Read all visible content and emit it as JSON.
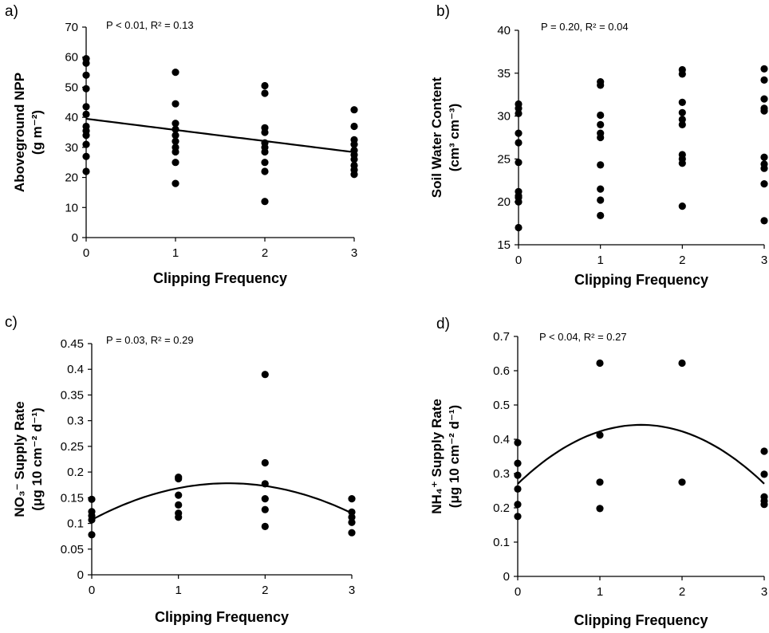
{
  "chart_data": [
    {
      "type": "scatter",
      "panel_label": "a)",
      "stats": "P < 0.01, R² = 0.13",
      "xlabel": "Clipping Frequency",
      "ylabel_line1": "Aboveground NPP",
      "ylabel_line2": "(g m⁻²)",
      "xlim": [
        0,
        3
      ],
      "ylim": [
        0,
        70
      ],
      "xticks": [
        "0",
        "1",
        "2",
        "3"
      ],
      "yticks": [
        "0",
        "10",
        "20",
        "30",
        "40",
        "50",
        "60",
        "70"
      ],
      "points": [
        {
          "x": 0,
          "y": 59.5
        },
        {
          "x": 0,
          "y": 58
        },
        {
          "x": 0,
          "y": 54
        },
        {
          "x": 0,
          "y": 49.5
        },
        {
          "x": 0,
          "y": 43.5
        },
        {
          "x": 0,
          "y": 41
        },
        {
          "x": 0,
          "y": 37
        },
        {
          "x": 0,
          "y": 35.5
        },
        {
          "x": 0,
          "y": 34
        },
        {
          "x": 0,
          "y": 31
        },
        {
          "x": 0,
          "y": 27
        },
        {
          "x": 0,
          "y": 22
        },
        {
          "x": 1,
          "y": 55
        },
        {
          "x": 1,
          "y": 44.5
        },
        {
          "x": 1,
          "y": 38
        },
        {
          "x": 1,
          "y": 36
        },
        {
          "x": 1,
          "y": 34
        },
        {
          "x": 1,
          "y": 32
        },
        {
          "x": 1,
          "y": 30
        },
        {
          "x": 1,
          "y": 28.5
        },
        {
          "x": 1,
          "y": 25
        },
        {
          "x": 1,
          "y": 18
        },
        {
          "x": 2,
          "y": 50.5
        },
        {
          "x": 2,
          "y": 48
        },
        {
          "x": 2,
          "y": 36.5
        },
        {
          "x": 2,
          "y": 35
        },
        {
          "x": 2,
          "y": 31.5
        },
        {
          "x": 2,
          "y": 30
        },
        {
          "x": 2,
          "y": 28.5
        },
        {
          "x": 2,
          "y": 25
        },
        {
          "x": 2,
          "y": 22
        },
        {
          "x": 2,
          "y": 12
        },
        {
          "x": 3,
          "y": 42.5
        },
        {
          "x": 3,
          "y": 37
        },
        {
          "x": 3,
          "y": 32.5
        },
        {
          "x": 3,
          "y": 31
        },
        {
          "x": 3,
          "y": 29
        },
        {
          "x": 3,
          "y": 27.5
        },
        {
          "x": 3,
          "y": 26
        },
        {
          "x": 3,
          "y": 24
        },
        {
          "x": 3,
          "y": 22.5
        },
        {
          "x": 3,
          "y": 21
        }
      ],
      "fit": {
        "type": "linear",
        "coef": [
          39.5,
          -3.7
        ]
      }
    },
    {
      "type": "scatter",
      "panel_label": "b)",
      "stats": "P = 0.20, R² = 0.04",
      "xlabel": "Clipping Frequency",
      "ylabel_line1": "Soil Water Content",
      "ylabel_line2": "(cm³ cm⁻³)",
      "xlim": [
        0,
        3
      ],
      "ylim": [
        15,
        40
      ],
      "xticks": [
        "0",
        "1",
        "2",
        "3"
      ],
      "yticks": [
        "15",
        "20",
        "25",
        "30",
        "35",
        "40"
      ],
      "points": [
        {
          "x": 0,
          "y": 31.4
        },
        {
          "x": 0,
          "y": 30.9
        },
        {
          "x": 0,
          "y": 30.3
        },
        {
          "x": 0,
          "y": 28
        },
        {
          "x": 0,
          "y": 26.9
        },
        {
          "x": 0,
          "y": 24.6
        },
        {
          "x": 0,
          "y": 21.2
        },
        {
          "x": 0,
          "y": 20.7
        },
        {
          "x": 0,
          "y": 20.5
        },
        {
          "x": 0,
          "y": 20
        },
        {
          "x": 0,
          "y": 17
        },
        {
          "x": 1,
          "y": 34
        },
        {
          "x": 1,
          "y": 33.6
        },
        {
          "x": 1,
          "y": 30.1
        },
        {
          "x": 1,
          "y": 29
        },
        {
          "x": 1,
          "y": 28
        },
        {
          "x": 1,
          "y": 27.5
        },
        {
          "x": 1,
          "y": 24.3
        },
        {
          "x": 1,
          "y": 21.5
        },
        {
          "x": 1,
          "y": 20.2
        },
        {
          "x": 1,
          "y": 18.4
        },
        {
          "x": 2,
          "y": 35.4
        },
        {
          "x": 2,
          "y": 34.9
        },
        {
          "x": 2,
          "y": 31.6
        },
        {
          "x": 2,
          "y": 30.4
        },
        {
          "x": 2,
          "y": 29.6
        },
        {
          "x": 2,
          "y": 29
        },
        {
          "x": 2,
          "y": 25.5
        },
        {
          "x": 2,
          "y": 25
        },
        {
          "x": 2,
          "y": 24.5
        },
        {
          "x": 2,
          "y": 19.5
        },
        {
          "x": 3,
          "y": 35.5
        },
        {
          "x": 3,
          "y": 34.2
        },
        {
          "x": 3,
          "y": 32
        },
        {
          "x": 3,
          "y": 30.9
        },
        {
          "x": 3,
          "y": 30.6
        },
        {
          "x": 3,
          "y": 25.2
        },
        {
          "x": 3,
          "y": 24.4
        },
        {
          "x": 3,
          "y": 23.9
        },
        {
          "x": 3,
          "y": 22.1
        },
        {
          "x": 3,
          "y": 17.8
        }
      ],
      "fit": null
    },
    {
      "type": "scatter",
      "panel_label": "c)",
      "stats": "P = 0.03, R² = 0.29",
      "xlabel": "Clipping Frequency",
      "ylabel_line1": "NO₃⁻ Supply Rate",
      "ylabel_line2": "(μg 10 cm⁻² d⁻¹)",
      "xlim": [
        0,
        3
      ],
      "ylim": [
        0,
        0.45
      ],
      "xticks": [
        "0",
        "1",
        "2",
        "3"
      ],
      "yticks": [
        "0",
        "0.05",
        "0.1",
        "0.15",
        "0.2",
        "0.25",
        "0.3",
        "0.35",
        "0.4",
        "0.45"
      ],
      "points": [
        {
          "x": 0,
          "y": 0.147
        },
        {
          "x": 0,
          "y": 0.123
        },
        {
          "x": 0,
          "y": 0.115
        },
        {
          "x": 0,
          "y": 0.107
        },
        {
          "x": 0,
          "y": 0.078
        },
        {
          "x": 1,
          "y": 0.19
        },
        {
          "x": 1,
          "y": 0.187
        },
        {
          "x": 1,
          "y": 0.155
        },
        {
          "x": 1,
          "y": 0.136
        },
        {
          "x": 1,
          "y": 0.12
        },
        {
          "x": 1,
          "y": 0.112
        },
        {
          "x": 2,
          "y": 0.39
        },
        {
          "x": 2,
          "y": 0.218
        },
        {
          "x": 2,
          "y": 0.177
        },
        {
          "x": 2,
          "y": 0.148
        },
        {
          "x": 2,
          "y": 0.127
        },
        {
          "x": 2,
          "y": 0.094
        },
        {
          "x": 3,
          "y": 0.148
        },
        {
          "x": 3,
          "y": 0.122
        },
        {
          "x": 3,
          "y": 0.112
        },
        {
          "x": 3,
          "y": 0.102
        },
        {
          "x": 3,
          "y": 0.082
        }
      ],
      "fit": {
        "type": "quadratic",
        "coef": [
          0.107,
          0.0904,
          -0.0287
        ]
      }
    },
    {
      "type": "scatter",
      "panel_label": "d)",
      "stats": "P < 0.04, R² = 0.27",
      "xlabel": "Clipping Frequency",
      "ylabel_line1": "NH₄⁺ Supply Rate",
      "ylabel_line2": "(μg 10 cm⁻² d⁻¹)",
      "xlim": [
        0,
        3
      ],
      "ylim": [
        0,
        0.7
      ],
      "xticks": [
        "0",
        "1",
        "2",
        "3"
      ],
      "yticks": [
        "0",
        "0.1",
        "0.2",
        "0.3",
        "0.4",
        "0.5",
        "0.6",
        "0.7"
      ],
      "points": [
        {
          "x": 0,
          "y": 0.39
        },
        {
          "x": 0,
          "y": 0.33
        },
        {
          "x": 0,
          "y": 0.295
        },
        {
          "x": 0,
          "y": 0.255
        },
        {
          "x": 0,
          "y": 0.21
        },
        {
          "x": 0,
          "y": 0.175
        },
        {
          "x": 1,
          "y": 0.622
        },
        {
          "x": 1,
          "y": 0.412
        },
        {
          "x": 1,
          "y": 0.275
        },
        {
          "x": 1,
          "y": 0.198
        },
        {
          "x": 2,
          "y": 0.622
        },
        {
          "x": 2,
          "y": 0.275
        },
        {
          "x": 3,
          "y": 0.365
        },
        {
          "x": 3,
          "y": 0.298
        },
        {
          "x": 3,
          "y": 0.232
        },
        {
          "x": 3,
          "y": 0.22
        },
        {
          "x": 3,
          "y": 0.21
        }
      ],
      "fit": {
        "type": "quadratic",
        "coef": [
          0.27,
          0.2293,
          -0.0764
        ]
      }
    }
  ]
}
